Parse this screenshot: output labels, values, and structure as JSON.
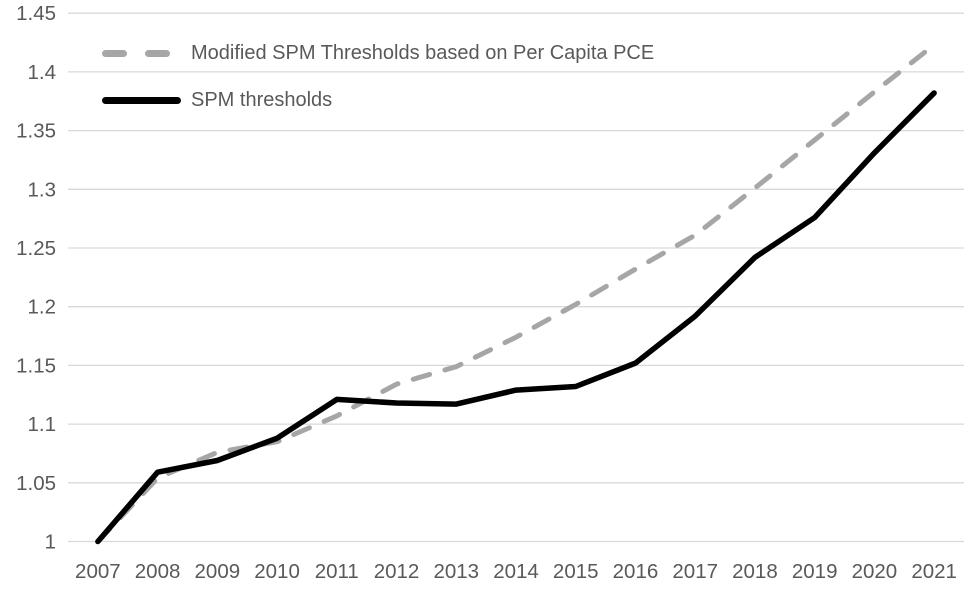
{
  "chart_data": {
    "type": "line",
    "categories": [
      "2007",
      "2008",
      "2009",
      "2010",
      "2011",
      "2012",
      "2013",
      "2014",
      "2015",
      "2016",
      "2017",
      "2018",
      "2019",
      "2020",
      "2021"
    ],
    "series": [
      {
        "name": "Modified SPM Thresholds based on Per Capita PCE",
        "line_style": "dashed",
        "color": "#A6A6A6",
        "values": [
          1.0,
          1.054,
          1.076,
          1.085,
          1.107,
          1.134,
          1.149,
          1.174,
          1.202,
          1.232,
          1.261,
          1.301,
          1.342,
          1.383,
          1.423
        ]
      },
      {
        "name": "SPM thresholds",
        "line_style": "solid",
        "color": "#000000",
        "values": [
          1.0,
          1.059,
          1.069,
          1.088,
          1.121,
          1.118,
          1.117,
          1.129,
          1.132,
          1.152,
          1.192,
          1.242,
          1.276,
          1.331,
          1.382
        ]
      }
    ],
    "title": "",
    "xlabel": "",
    "ylabel": "",
    "ylim": [
      1.0,
      1.45
    ],
    "y_ticks": [
      1,
      1.05,
      1.1,
      1.15,
      1.2,
      1.25,
      1.3,
      1.35,
      1.4,
      1.45
    ],
    "y_tick_labels": [
      "1",
      "1.05",
      "1.1",
      "1.15",
      "1.2",
      "1.25",
      "1.3",
      "1.35",
      "1.4",
      "1.45"
    ],
    "grid": "horizontal",
    "legend_position": "top-left-inside",
    "colors": {
      "axis_labels": "#595959",
      "gridlines": "#D9D9D9",
      "background": "#FFFFFF"
    }
  }
}
